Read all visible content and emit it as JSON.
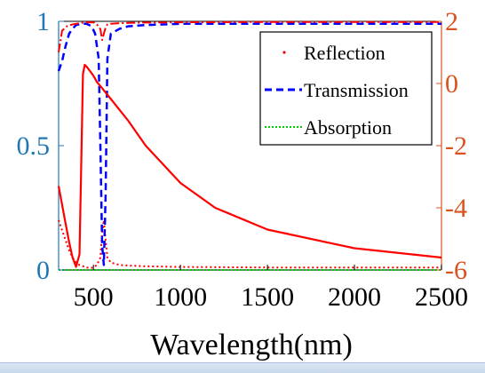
{
  "colors": {
    "left_axis": "#1f78b4",
    "right_axis": "#d9531e",
    "reflection": "#ff0000",
    "transmission": "#0000ff",
    "absorption": "#00cc00"
  },
  "chart_data": {
    "type": "line",
    "xlabel": "Wavelength(nm)",
    "ylabel": "",
    "xlim": [
      300,
      2500
    ],
    "ylim": [
      0,
      1
    ],
    "ylim_right": [
      -6,
      2
    ],
    "x_ticks": [
      "500",
      "1000",
      "1500",
      "2000",
      "2500"
    ],
    "x_tick_values": [
      500,
      1000,
      1500,
      2000,
      2500
    ],
    "y_ticks": [
      "0",
      "0.5",
      "1"
    ],
    "y_tick_values": [
      0,
      0.5,
      1
    ],
    "y_right_ticks": [
      "-6",
      "-4",
      "-2",
      "0",
      "2"
    ],
    "y_right_tick_values": [
      -6,
      -4,
      -2,
      0,
      2
    ],
    "legend_position": "top-right",
    "legend": [
      "Reflection",
      "Transmission",
      "Absorption"
    ],
    "series": [
      {
        "name": "Reflection",
        "axis": "left",
        "style": "dotted",
        "x": [
          300,
          320,
          340,
          360,
          380,
          400,
          420,
          440,
          460,
          480,
          500,
          520,
          540,
          550,
          560,
          570,
          580,
          600,
          650,
          700,
          800,
          1000,
          1500,
          2000,
          2500
        ],
        "y": [
          0.2,
          0.16,
          0.12,
          0.08,
          0.05,
          0.03,
          0.02,
          0.015,
          0.01,
          0.008,
          0.01,
          0.02,
          0.05,
          0.15,
          0.2,
          0.12,
          0.05,
          0.03,
          0.02,
          0.018,
          0.015,
          0.012,
          0.01,
          0.01,
          0.01
        ]
      },
      {
        "name": "Transmission",
        "axis": "left",
        "style": "dashed",
        "x": [
          300,
          320,
          340,
          360,
          380,
          400,
          430,
          460,
          490,
          510,
          530,
          540,
          550,
          560,
          570,
          580,
          600,
          650,
          700,
          800,
          1000,
          1500,
          2000,
          2500
        ],
        "y": [
          0.8,
          0.84,
          0.9,
          0.95,
          0.97,
          0.985,
          0.99,
          0.99,
          0.98,
          0.95,
          0.85,
          0.5,
          0.1,
          0.02,
          0.3,
          0.85,
          0.95,
          0.97,
          0.98,
          0.985,
          0.99,
          0.99,
          0.99,
          0.99
        ]
      },
      {
        "name": "Absorption",
        "axis": "left",
        "style": "dotted",
        "x": [
          300,
          600,
          1000,
          1500,
          2000,
          2500
        ],
        "y": [
          0.0,
          0.0,
          0.0,
          0.0,
          0.0,
          0.0
        ]
      },
      {
        "name": "",
        "axis": "right",
        "style": "solid",
        "x": [
          300,
          320,
          340,
          360,
          380,
          400,
          420,
          440,
          450,
          460,
          480,
          500,
          520,
          550,
          600,
          700,
          800,
          1000,
          1200,
          1500,
          2000,
          2500
        ],
        "y": [
          -3.3,
          -3.9,
          -4.5,
          -5.1,
          -5.6,
          -5.9,
          -5.5,
          0.3,
          0.6,
          0.55,
          0.4,
          0.25,
          0.05,
          -0.15,
          -0.5,
          -1.2,
          -2.0,
          -3.2,
          -4.0,
          -4.7,
          -5.3,
          -5.6
        ]
      },
      {
        "name": "",
        "axis": "right",
        "style": "dashdot",
        "x": [
          300,
          320,
          350,
          380,
          400,
          430,
          460,
          500,
          520,
          540,
          550,
          560,
          570,
          580,
          600,
          650,
          700,
          800,
          1000,
          1500,
          2000,
          2500
        ],
        "y": [
          1.0,
          1.7,
          1.85,
          1.9,
          1.92,
          1.95,
          1.97,
          1.97,
          1.9,
          1.75,
          1.4,
          1.6,
          1.8,
          1.9,
          1.92,
          1.94,
          1.95,
          1.96,
          1.97,
          1.98,
          1.98,
          1.98
        ]
      }
    ]
  }
}
